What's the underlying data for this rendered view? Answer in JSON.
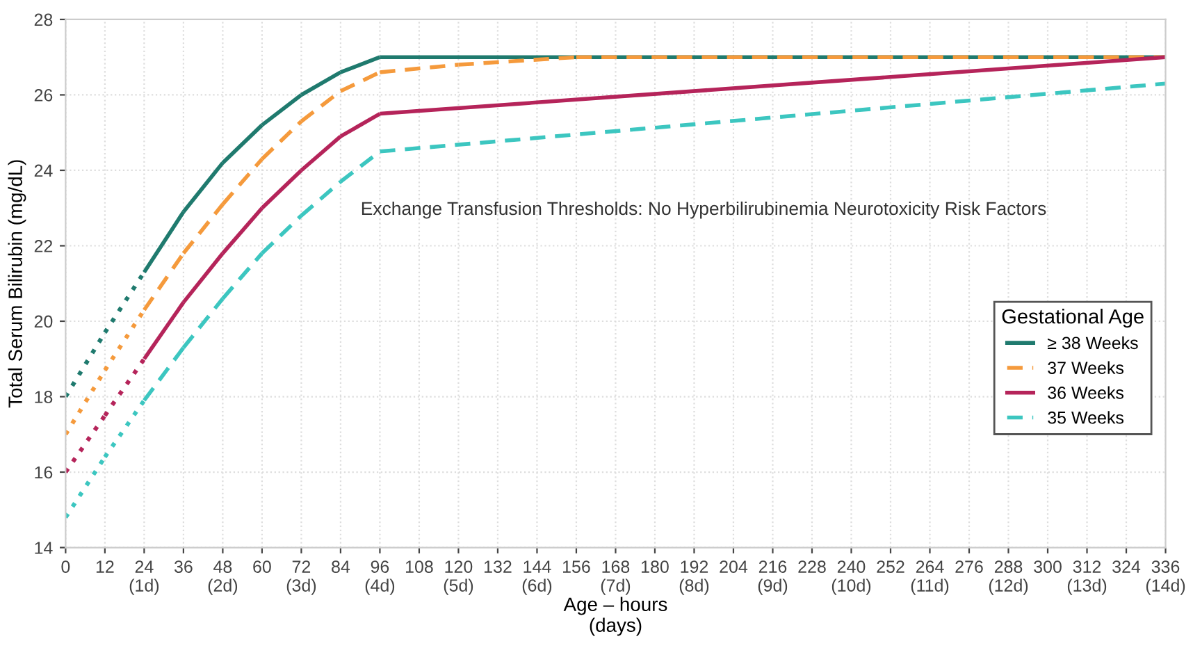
{
  "chart_data": {
    "type": "line",
    "xlabel": "Age – hours\n(days)",
    "ylabel": "Total Serum Bilirubin (mg/dL)",
    "legend_title": "Gestational Age",
    "annotations": [
      "Exchange Transfusion Thresholds: No Hyperbilirubinemia Neurotoxicity Risk Factors"
    ],
    "series": [
      {
        "name": "≥ 38 Weeks",
        "color": "#1f7a6e",
        "line_style": [
          "dotted",
          "dotted",
          "solid",
          "solid",
          "solid",
          "solid",
          "solid",
          "solid",
          "solid"
        ],
        "x": [
          0,
          12,
          24,
          36,
          48,
          60,
          72,
          84,
          96,
          336
        ],
        "values": [
          18,
          19.7,
          21.3,
          22.9,
          24.2,
          25.2,
          26.0,
          26.6,
          27,
          27
        ]
      },
      {
        "name": "37 Weeks",
        "color": "#f59a3c",
        "line_style": [
          "dotted",
          "dotted",
          "dashed",
          "dashed",
          "dashed",
          "dashed",
          "dashed",
          "dashed",
          "dashed",
          "dashed",
          "dashed"
        ],
        "x": [
          0,
          12,
          24,
          36,
          48,
          60,
          72,
          84,
          96,
          120,
          156,
          336
        ],
        "values": [
          17,
          18.7,
          20.3,
          21.8,
          23.1,
          24.3,
          25.3,
          26.1,
          26.6,
          26.8,
          27,
          27
        ]
      },
      {
        "name": "36 Weeks",
        "color": "#b5245a",
        "line_style": [
          "dotted",
          "dotted",
          "solid",
          "solid",
          "solid",
          "solid",
          "solid",
          "solid",
          "solid"
        ],
        "x": [
          0,
          12,
          24,
          36,
          48,
          60,
          72,
          84,
          96,
          336
        ],
        "values": [
          16,
          17.5,
          19.0,
          20.5,
          21.8,
          23.0,
          24.0,
          24.9,
          25.5,
          27
        ]
      },
      {
        "name": "35 Weeks",
        "color": "#3cc6c0",
        "line_style": [
          "dotted",
          "dotted",
          "dashed",
          "dashed",
          "dashed",
          "dashed",
          "dashed",
          "dashed",
          "dashed"
        ],
        "x": [
          0,
          12,
          24,
          36,
          48,
          60,
          72,
          84,
          96,
          336
        ],
        "values": [
          14.8,
          16.4,
          17.9,
          19.3,
          20.6,
          21.8,
          22.8,
          23.7,
          24.5,
          26.3
        ]
      }
    ],
    "xlim": [
      0,
      336
    ],
    "ylim": [
      14,
      28
    ],
    "xticks": [
      0,
      12,
      {
        "value": 24,
        "label": "24\n(1d)"
      },
      36,
      {
        "value": 48,
        "label": "48\n(2d)"
      },
      60,
      {
        "value": 72,
        "label": "72\n(3d)"
      },
      84,
      {
        "value": 96,
        "label": "96\n(4d)"
      },
      108,
      {
        "value": 120,
        "label": "120\n(5d)"
      },
      132,
      {
        "value": 144,
        "label": "144\n(6d)"
      },
      156,
      {
        "value": 168,
        "label": "168\n(7d)"
      },
      180,
      {
        "value": 192,
        "label": "192\n(8d)"
      },
      204,
      {
        "value": 216,
        "label": "216\n(9d)"
      },
      228,
      {
        "value": 240,
        "label": "240\n(10d)"
      },
      252,
      {
        "value": 264,
        "label": "264\n(11d)"
      },
      276,
      {
        "value": 288,
        "label": "288\n(12d)"
      },
      300,
      {
        "value": 312,
        "label": "312\n(13d)"
      },
      324,
      {
        "value": 336,
        "label": "336\n(14d)"
      }
    ],
    "yticks": [
      14,
      16,
      18,
      20,
      22,
      24,
      26,
      28
    ],
    "grid": true,
    "legend": "right",
    "marker": "none"
  }
}
